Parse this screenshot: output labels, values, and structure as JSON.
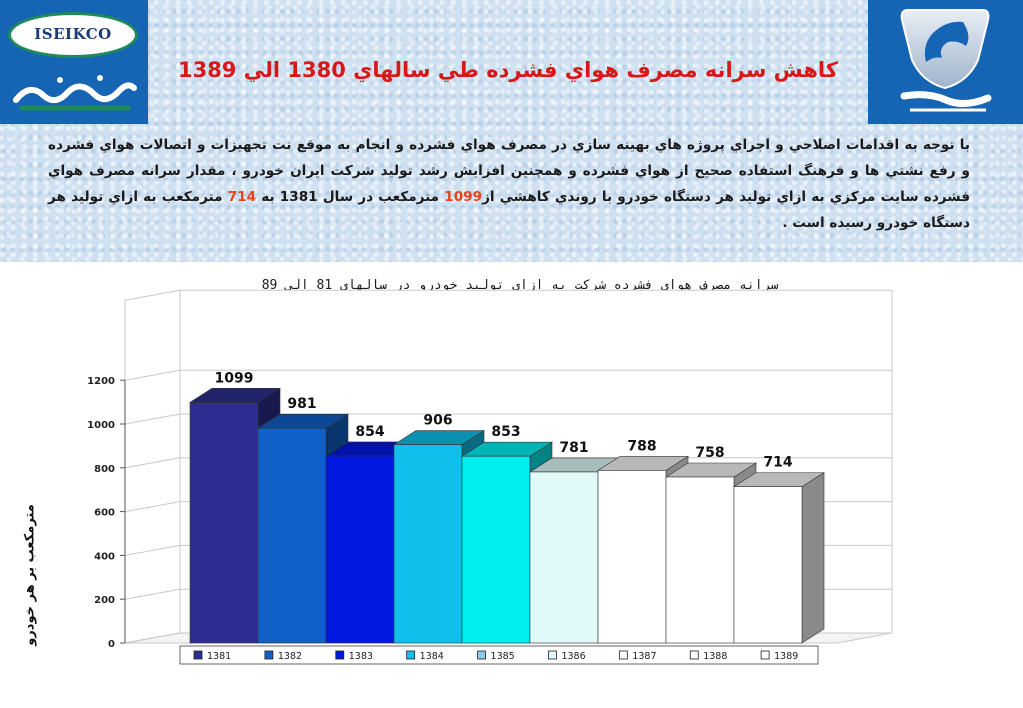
{
  "header": {
    "title": "كاهش سرانه مصرف هواي فشرده طي سالهاي 1380 الي 1389",
    "paragraph_before_1": "با توجه به اقدامات اصلاحي و اجراي پروژه هاي بهينه سازي در مصرف هواي فشرده و انجام به موقع نت تجهيزات و اتصالات هواي فشرده و رفع نشتي ها و فرهنگ استفاده صحيح از هواي فشرده و همچنين افزايش رشد توليد شركت ايران خودرو ، مقدار سرانه مصرف هواي فشرده سايت مركزي به ازاي توليد هر دستگاه خودرو با روندي كاهشي از",
    "highlight_1": "1099",
    "paragraph_between": " مترمكعب در سال 1381 به ",
    "highlight_2": "714",
    "paragraph_after": " مترمكعب به ازاي توليد هر دستگاه خودرو رسيده است ."
  },
  "logos": {
    "left_brand_latin": "ISEIKCO",
    "left_brand_farsi": "ايسيكو",
    "right_brand_farsi": "ايران خودرو"
  },
  "colors": {
    "header_accent": "#1565b4",
    "title_red": "#d81818",
    "highlight_orange": "#e8431a"
  },
  "chart_data": {
    "type": "bar",
    "title": "سرانه مصرف هواى فشرده شركت به ازاى توليد خودرو در سالهاى 81 الى 89",
    "ylabel": "مترمكعب بر هر خودرو",
    "xlabel": "",
    "ylim": [
      0,
      1200
    ],
    "yticks": [
      0,
      200,
      400,
      600,
      800,
      1000,
      1200
    ],
    "grid": true,
    "legend_position": "bottom",
    "categories": [
      "1381",
      "1382",
      "1383",
      "1384",
      "1385",
      "1386",
      "1387",
      "1388",
      "1389"
    ],
    "series": [
      {
        "name": "1381",
        "value": 1099,
        "color": "#2c2f8f"
      },
      {
        "name": "1382",
        "value": 981,
        "color": "#1160c8"
      },
      {
        "name": "1383",
        "value": 854,
        "color": "#0018e0"
      },
      {
        "name": "1384",
        "value": 906,
        "color": "#10c0ec"
      },
      {
        "name": "1385",
        "value": 853,
        "color": "#00eef0"
      },
      {
        "name": "1386",
        "value": 781,
        "color": "#e0fafa"
      },
      {
        "name": "1387",
        "value": 788,
        "color": "#ffffff"
      },
      {
        "name": "1388",
        "value": 758,
        "color": "#ffffff"
      },
      {
        "name": "1389",
        "value": 714,
        "color": "#ffffff"
      }
    ],
    "legend_swatches": [
      "#2c2f8f",
      "#1160c8",
      "#0018e0",
      "#10c0ec",
      "#8fc8ee",
      "#e0fafa",
      "#ffffff",
      "#ffffff",
      "#ffffff"
    ]
  }
}
